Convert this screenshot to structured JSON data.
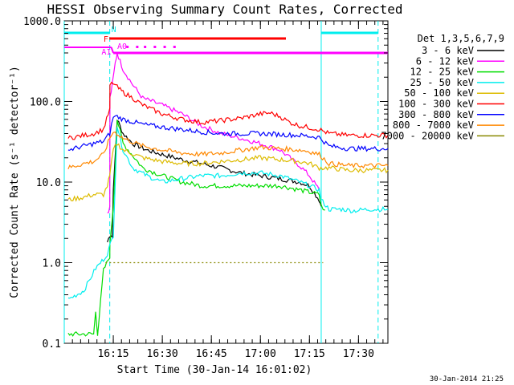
{
  "chart_data": {
    "type": "line",
    "title": "HESSI Observing Summary Count Rates, Corrected",
    "xlabel": "Start Time (30-Jan-14 16:01:02)",
    "ylabel": "Corrected Count Rate (s⁻¹ detector⁻¹)",
    "y_scale": "log",
    "ylim": [
      0.1,
      1000
    ],
    "xlim_minutes": [
      16.0,
      17.65
    ],
    "x_units": "hours after 16:00 (16:01:02 start)",
    "x_ticks": [
      {
        "label": "16:15",
        "value": 16.25
      },
      {
        "label": "16:30",
        "value": 16.5
      },
      {
        "label": "16:45",
        "value": 16.75
      },
      {
        "label": "17:00",
        "value": 17.0
      },
      {
        "label": "17:15",
        "value": 17.25
      },
      {
        "label": "17:30",
        "value": 17.5
      }
    ],
    "y_ticks": [
      {
        "label": "1000.0",
        "value": 1000
      },
      {
        "label": "100.0",
        "value": 100
      },
      {
        "label": "10.0",
        "value": 10
      },
      {
        "label": "1.0",
        "value": 1
      },
      {
        "label": "0.1",
        "value": 0.1
      }
    ],
    "legend_title": "Det 1,3,5,6,7,9",
    "legend_position": "right",
    "series": [
      {
        "name": "3 - 6 keV",
        "color": "#000000",
        "x": [
          16.22,
          16.232,
          16.233,
          16.245,
          16.25,
          16.27,
          16.3,
          16.35,
          16.42,
          16.5,
          16.6,
          16.7,
          16.8,
          16.9,
          17.0,
          17.1,
          17.2,
          17.25,
          17.3,
          17.31
        ],
        "y": [
          1.8,
          2.2,
          2.1,
          2.2,
          8,
          60,
          40,
          30,
          25,
          22,
          19,
          17,
          15,
          13,
          12,
          11,
          10,
          9,
          6,
          5
        ]
      },
      {
        "name": "6 - 12 keV",
        "color": "#ff00ff",
        "x": [
          16.22,
          16.232,
          16.233,
          16.245,
          16.26,
          16.27,
          16.3,
          16.35,
          16.4,
          16.5,
          16.6,
          16.7,
          16.8,
          16.9,
          17.0,
          17.1,
          17.15,
          17.2,
          17.25,
          17.3
        ],
        "y": [
          4.2,
          4.8,
          110,
          160,
          300,
          400,
          250,
          160,
          110,
          90,
          70,
          50,
          40,
          35,
          30,
          25,
          20,
          16,
          12,
          8
        ]
      },
      {
        "name": "12 - 25 keV",
        "color": "#00dd00",
        "x": [
          16.02,
          16.1,
          16.15,
          16.16,
          16.17,
          16.2,
          16.232,
          16.233,
          16.25,
          16.27,
          16.3,
          16.4,
          16.5,
          16.6,
          16.7,
          16.8,
          16.9,
          17.0,
          17.1,
          17.2,
          17.3,
          17.31,
          17.33
        ],
        "y": [
          0.13,
          0.13,
          0.13,
          0.25,
          0.13,
          0.8,
          1.2,
          1.8,
          5,
          60,
          30,
          15,
          12,
          10,
          9,
          9,
          9,
          9,
          9,
          8,
          7,
          5,
          4.5
        ]
      },
      {
        "name": "25 - 50 keV",
        "color": "#00eeee",
        "x": [
          16.02,
          16.1,
          16.16,
          16.2,
          16.22,
          16.25,
          16.27,
          16.3,
          16.35,
          16.42,
          16.5,
          16.6,
          16.7,
          16.8,
          16.9,
          17.0,
          17.1,
          17.2,
          17.25,
          17.3,
          17.31,
          17.35,
          17.42,
          17.47,
          17.55,
          17.65
        ],
        "y": [
          0.35,
          0.45,
          0.85,
          1.1,
          1.3,
          2.2,
          50,
          25,
          15,
          12,
          10,
          11,
          12,
          12,
          13,
          13,
          12,
          10,
          9,
          8,
          6,
          4.6,
          4.6,
          4.4,
          4.6,
          4.6
        ]
      },
      {
        "name": "50 - 100 keV",
        "color": "#ddbb00",
        "x": [
          16.02,
          16.1,
          16.15,
          16.2,
          16.22,
          16.232,
          16.25,
          16.27,
          16.3,
          16.4,
          16.5,
          16.6,
          16.7,
          16.8,
          16.9,
          17.0,
          17.1,
          17.2,
          17.25,
          17.3,
          17.35,
          17.45,
          17.65
        ],
        "y": [
          6,
          6.5,
          7,
          7,
          9,
          12,
          25,
          30,
          25,
          20,
          18,
          17,
          17,
          18,
          19,
          20,
          19,
          18,
          17,
          15,
          15,
          14,
          14
        ]
      },
      {
        "name": "100 - 300 keV",
        "color": "#ff0000",
        "x": [
          16.02,
          16.1,
          16.15,
          16.2,
          16.232,
          16.233,
          16.25,
          16.27,
          16.3,
          16.35,
          16.4,
          16.5,
          16.6,
          16.7,
          16.8,
          16.9,
          17.0,
          17.05,
          17.1,
          17.15,
          17.2,
          17.3,
          17.35,
          17.45,
          17.65
        ],
        "y": [
          35,
          38,
          40,
          45,
          80,
          160,
          170,
          150,
          130,
          110,
          90,
          70,
          60,
          55,
          58,
          62,
          70,
          72,
          65,
          55,
          50,
          45,
          40,
          38,
          38
        ]
      },
      {
        "name": "300 - 800 keV",
        "color": "#0000ff",
        "x": [
          16.02,
          16.1,
          16.15,
          16.2,
          16.232,
          16.25,
          16.27,
          16.3,
          16.4,
          16.5,
          16.6,
          16.7,
          16.8,
          16.9,
          17.0,
          17.1,
          17.2,
          17.25,
          17.3,
          17.35,
          17.45,
          17.65
        ],
        "y": [
          25,
          28,
          30,
          32,
          40,
          65,
          65,
          60,
          52,
          48,
          45,
          42,
          40,
          40,
          40,
          39,
          38,
          37,
          36,
          28,
          26,
          26
        ]
      },
      {
        "name": "800 - 7000 keV",
        "color": "#ff8800",
        "x": [
          16.02,
          16.1,
          16.15,
          16.2,
          16.232,
          16.25,
          16.27,
          16.3,
          16.4,
          16.5,
          16.6,
          16.7,
          16.8,
          16.9,
          17.0,
          17.1,
          17.2,
          17.25,
          17.3,
          17.35,
          17.45,
          17.65
        ],
        "y": [
          15,
          17,
          18,
          22,
          35,
          42,
          40,
          35,
          28,
          25,
          23,
          22,
          23,
          25,
          27,
          26,
          25,
          24,
          22,
          17,
          16,
          16
        ]
      },
      {
        "name": "7000 - 20000 keV",
        "color": "#888800",
        "x": [
          16.21,
          16.22,
          16.232,
          16.25,
          16.4,
          16.6,
          16.8,
          17.0,
          17.2,
          17.31,
          17.32
        ],
        "y": [
          1,
          1,
          1,
          1,
          1,
          1,
          1,
          1,
          1,
          1,
          1
        ]
      }
    ],
    "annotations": [
      {
        "label": "N",
        "color": "#00eeee"
      },
      {
        "label": "F",
        "color": "#ff0000"
      },
      {
        "label": "A0",
        "color": "#ff00ff"
      },
      {
        "label": "A1",
        "color": "#ff00ff"
      }
    ],
    "timestamp": "30-Jan-2014 21:25"
  }
}
